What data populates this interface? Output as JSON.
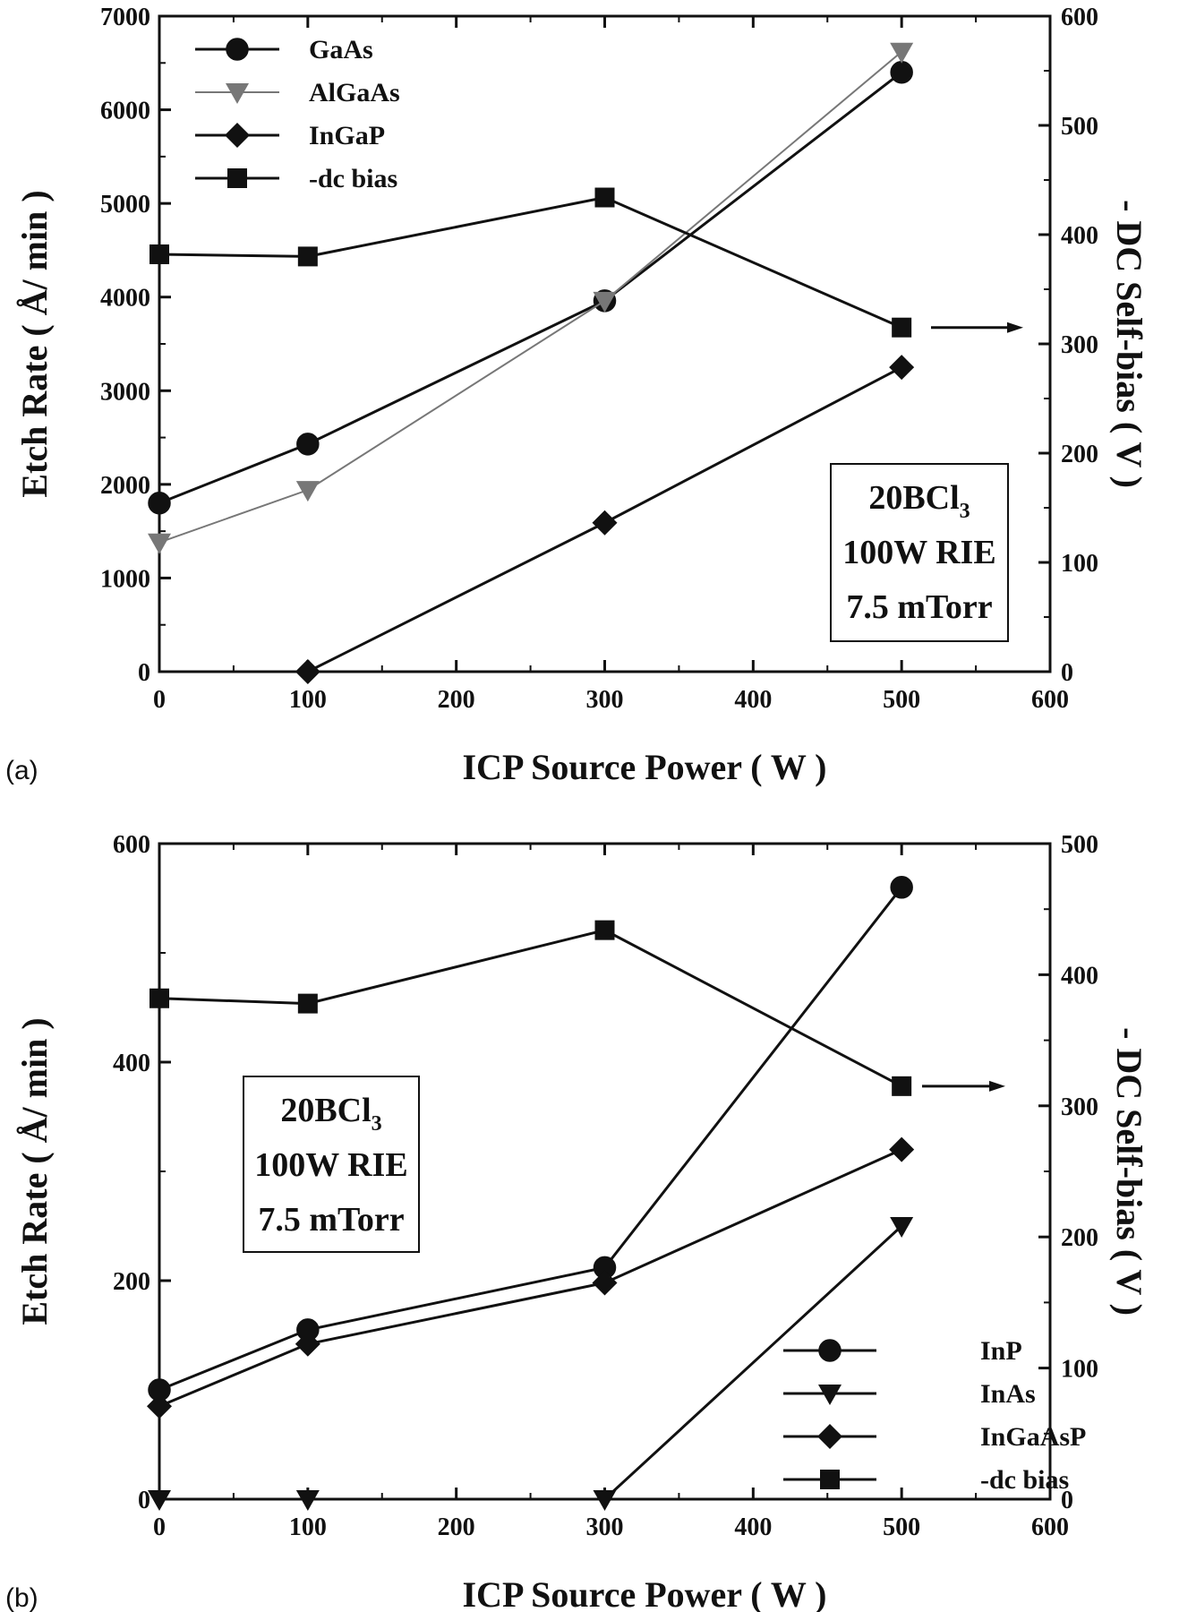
{
  "chart_data": [
    {
      "type": "line",
      "panel_label": "(a)",
      "xlabel": "ICP Source Power ( W )",
      "ylabel": "Etch Rate ( Å/ min )",
      "y2label": "- DC  Self-bias ( V )",
      "xlim": [
        0,
        600
      ],
      "ylim": [
        0,
        7000
      ],
      "y2lim": [
        0,
        600
      ],
      "x_ticks": [
        "0",
        "100",
        "200",
        "300",
        "400",
        "500",
        "600"
      ],
      "y_ticks": [
        "0",
        "1000",
        "2000",
        "3000",
        "4000",
        "5000",
        "6000",
        "7000"
      ],
      "y2_ticks": [
        "0",
        "100",
        "200",
        "300",
        "400",
        "500",
        "600"
      ],
      "legend_position": "top-left",
      "conditions": {
        "line1_main": "20BCl",
        "line1_sub": "3",
        "line2": "100W RIE",
        "line3": "7.5 mTorr"
      },
      "series": [
        {
          "name": "GaAs",
          "marker": "circle",
          "axis": "left",
          "x": [
            0,
            100,
            300,
            500
          ],
          "y": [
            1800,
            2430,
            3960,
            6400
          ]
        },
        {
          "name": "AlGaAs",
          "marker": "triangle-down",
          "axis": "left",
          "color": "#777777",
          "x": [
            0,
            100,
            300,
            500
          ],
          "y": [
            1380,
            1940,
            3960,
            6620
          ]
        },
        {
          "name": "InGaP",
          "marker": "diamond",
          "axis": "left",
          "x": [
            100,
            300,
            500
          ],
          "y": [
            0,
            1590,
            3250
          ]
        },
        {
          "name": "-dc bias",
          "marker": "square",
          "axis": "right",
          "x": [
            0,
            100,
            300,
            500
          ],
          "y": [
            382,
            380,
            434,
            315
          ]
        }
      ],
      "annotation": "arrow pointing to right axis from -dc bias series"
    },
    {
      "type": "line",
      "panel_label": "(b)",
      "xlabel": "ICP Source Power ( W )",
      "ylabel": "Etch Rate ( Å/ min )",
      "y2label": "- DC  Self-bias ( V )",
      "xlim": [
        0,
        600
      ],
      "ylim": [
        0,
        600
      ],
      "y2lim": [
        0,
        500
      ],
      "x_ticks": [
        "0",
        "100",
        "200",
        "300",
        "400",
        "500",
        "600"
      ],
      "y_ticks": [
        "0",
        "200",
        "400",
        "600"
      ],
      "y2_ticks": [
        "0",
        "100",
        "200",
        "300",
        "400",
        "500"
      ],
      "legend_position": "bottom-right",
      "conditions": {
        "line1_main": "20BCl",
        "line1_sub": "3",
        "line2": "100W RIE",
        "line3": "7.5 mTorr"
      },
      "series": [
        {
          "name": "InP",
          "marker": "circle",
          "axis": "left",
          "x": [
            0,
            100,
            300,
            500
          ],
          "y": [
            100,
            155,
            212,
            560
          ]
        },
        {
          "name": "InAs",
          "marker": "triangle-down",
          "axis": "left",
          "x": [
            0,
            100,
            300,
            500
          ],
          "y": [
            0,
            0,
            0,
            250
          ]
        },
        {
          "name": "InGaAsP",
          "marker": "diamond",
          "axis": "left",
          "x": [
            0,
            100,
            300,
            500
          ],
          "y": [
            85,
            142,
            198,
            320
          ]
        },
        {
          "name": "-dc bias",
          "marker": "square",
          "axis": "right",
          "x": [
            0,
            100,
            300,
            500
          ],
          "y": [
            382,
            378,
            434,
            315
          ]
        }
      ],
      "annotation": "arrow pointing to right axis from -dc bias series"
    }
  ]
}
